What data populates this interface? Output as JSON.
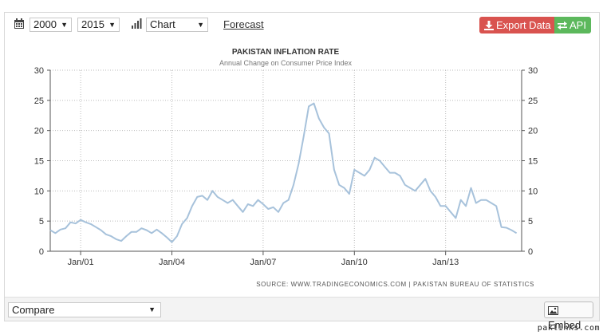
{
  "toolbar": {
    "start_year": "2000",
    "end_year": "2015",
    "chart_type": "Chart",
    "forecast_label": "Forecast",
    "export_label": "Export Data",
    "api_label": "API",
    "icons": [
      "calendar-icon",
      "bar-chart-icon",
      "download-icon",
      "exchange-icon"
    ],
    "colors": {
      "export": "#d9534f",
      "api": "#5cb85c"
    }
  },
  "chart_data": {
    "type": "line",
    "title": "PAKISTAN INFLATION RATE",
    "subtitle": "Annual Change on Consumer Price Index",
    "source": "SOURCE: WWW.TRADINGECONOMICS.COM  |  PAKISTAN BUREAU OF STATISTICS",
    "xlabel": "",
    "ylabel": "",
    "ylim": [
      0,
      30
    ],
    "yticks": [
      0,
      5,
      10,
      15,
      20,
      25,
      30
    ],
    "xlim": [
      "2000-01",
      "2015-07"
    ],
    "xticks": [
      "Jan/01",
      "Jan/04",
      "Jan/07",
      "Jan/10",
      "Jan/13"
    ],
    "grid": true,
    "line_color": "#a7c2db",
    "series": [
      {
        "values": [
          [
            "2000-01",
            3.5
          ],
          [
            "2000-03",
            3.0
          ],
          [
            "2000-05",
            3.6
          ],
          [
            "2000-07",
            3.8
          ],
          [
            "2000-09",
            4.8
          ],
          [
            "2000-11",
            4.6
          ],
          [
            "2001-01",
            5.2
          ],
          [
            "2001-03",
            4.8
          ],
          [
            "2001-05",
            4.5
          ],
          [
            "2001-07",
            4.0
          ],
          [
            "2001-09",
            3.5
          ],
          [
            "2001-11",
            2.8
          ],
          [
            "2002-01",
            2.5
          ],
          [
            "2002-03",
            2.0
          ],
          [
            "2002-05",
            1.7
          ],
          [
            "2002-07",
            2.5
          ],
          [
            "2002-09",
            3.2
          ],
          [
            "2002-11",
            3.2
          ],
          [
            "2003-01",
            3.8
          ],
          [
            "2003-03",
            3.5
          ],
          [
            "2003-05",
            3.0
          ],
          [
            "2003-07",
            3.6
          ],
          [
            "2003-09",
            3.0
          ],
          [
            "2003-11",
            2.3
          ],
          [
            "2004-01",
            1.5
          ],
          [
            "2004-03",
            2.5
          ],
          [
            "2004-05",
            4.5
          ],
          [
            "2004-07",
            5.5
          ],
          [
            "2004-09",
            7.5
          ],
          [
            "2004-11",
            9.0
          ],
          [
            "2005-01",
            9.2
          ],
          [
            "2005-03",
            8.5
          ],
          [
            "2005-05",
            10.0
          ],
          [
            "2005-07",
            9.0
          ],
          [
            "2005-09",
            8.5
          ],
          [
            "2005-11",
            8.0
          ],
          [
            "2006-01",
            8.5
          ],
          [
            "2006-03",
            7.5
          ],
          [
            "2006-05",
            6.5
          ],
          [
            "2006-07",
            7.8
          ],
          [
            "2006-09",
            7.5
          ],
          [
            "2006-11",
            8.5
          ],
          [
            "2007-01",
            7.8
          ],
          [
            "2007-03",
            7.0
          ],
          [
            "2007-05",
            7.3
          ],
          [
            "2007-07",
            6.5
          ],
          [
            "2007-09",
            8.0
          ],
          [
            "2007-11",
            8.5
          ],
          [
            "2008-01",
            11.0
          ],
          [
            "2008-03",
            14.5
          ],
          [
            "2008-05",
            19.0
          ],
          [
            "2008-07",
            24.0
          ],
          [
            "2008-09",
            24.5
          ],
          [
            "2008-11",
            22.0
          ],
          [
            "2009-01",
            20.5
          ],
          [
            "2009-03",
            19.5
          ],
          [
            "2009-05",
            13.5
          ],
          [
            "2009-07",
            11.0
          ],
          [
            "2009-09",
            10.5
          ],
          [
            "2009-11",
            9.5
          ],
          [
            "2010-01",
            13.5
          ],
          [
            "2010-03",
            13.0
          ],
          [
            "2010-05",
            12.5
          ],
          [
            "2010-07",
            13.5
          ],
          [
            "2010-09",
            15.5
          ],
          [
            "2010-11",
            15.0
          ],
          [
            "2011-01",
            14.0
          ],
          [
            "2011-03",
            13.0
          ],
          [
            "2011-05",
            13.0
          ],
          [
            "2011-07",
            12.5
          ],
          [
            "2011-09",
            11.0
          ],
          [
            "2011-11",
            10.5
          ],
          [
            "2012-01",
            10.0
          ],
          [
            "2012-03",
            11.0
          ],
          [
            "2012-05",
            12.0
          ],
          [
            "2012-07",
            10.0
          ],
          [
            "2012-09",
            9.0
          ],
          [
            "2012-11",
            7.5
          ],
          [
            "2013-01",
            7.5
          ],
          [
            "2013-03",
            6.5
          ],
          [
            "2013-05",
            5.5
          ],
          [
            "2013-07",
            8.5
          ],
          [
            "2013-09",
            7.5
          ],
          [
            "2013-11",
            10.5
          ],
          [
            "2014-01",
            8.0
          ],
          [
            "2014-03",
            8.5
          ],
          [
            "2014-05",
            8.5
          ],
          [
            "2014-07",
            8.0
          ],
          [
            "2014-09",
            7.5
          ],
          [
            "2014-11",
            4.0
          ],
          [
            "2015-01",
            3.9
          ],
          [
            "2015-03",
            3.5
          ],
          [
            "2015-05",
            3.0
          ]
        ]
      }
    ]
  },
  "bottombar": {
    "compare_label": "Compare",
    "embed_label": "Embed",
    "icons": [
      "image-icon"
    ]
  },
  "watermark": "paklinks.com"
}
